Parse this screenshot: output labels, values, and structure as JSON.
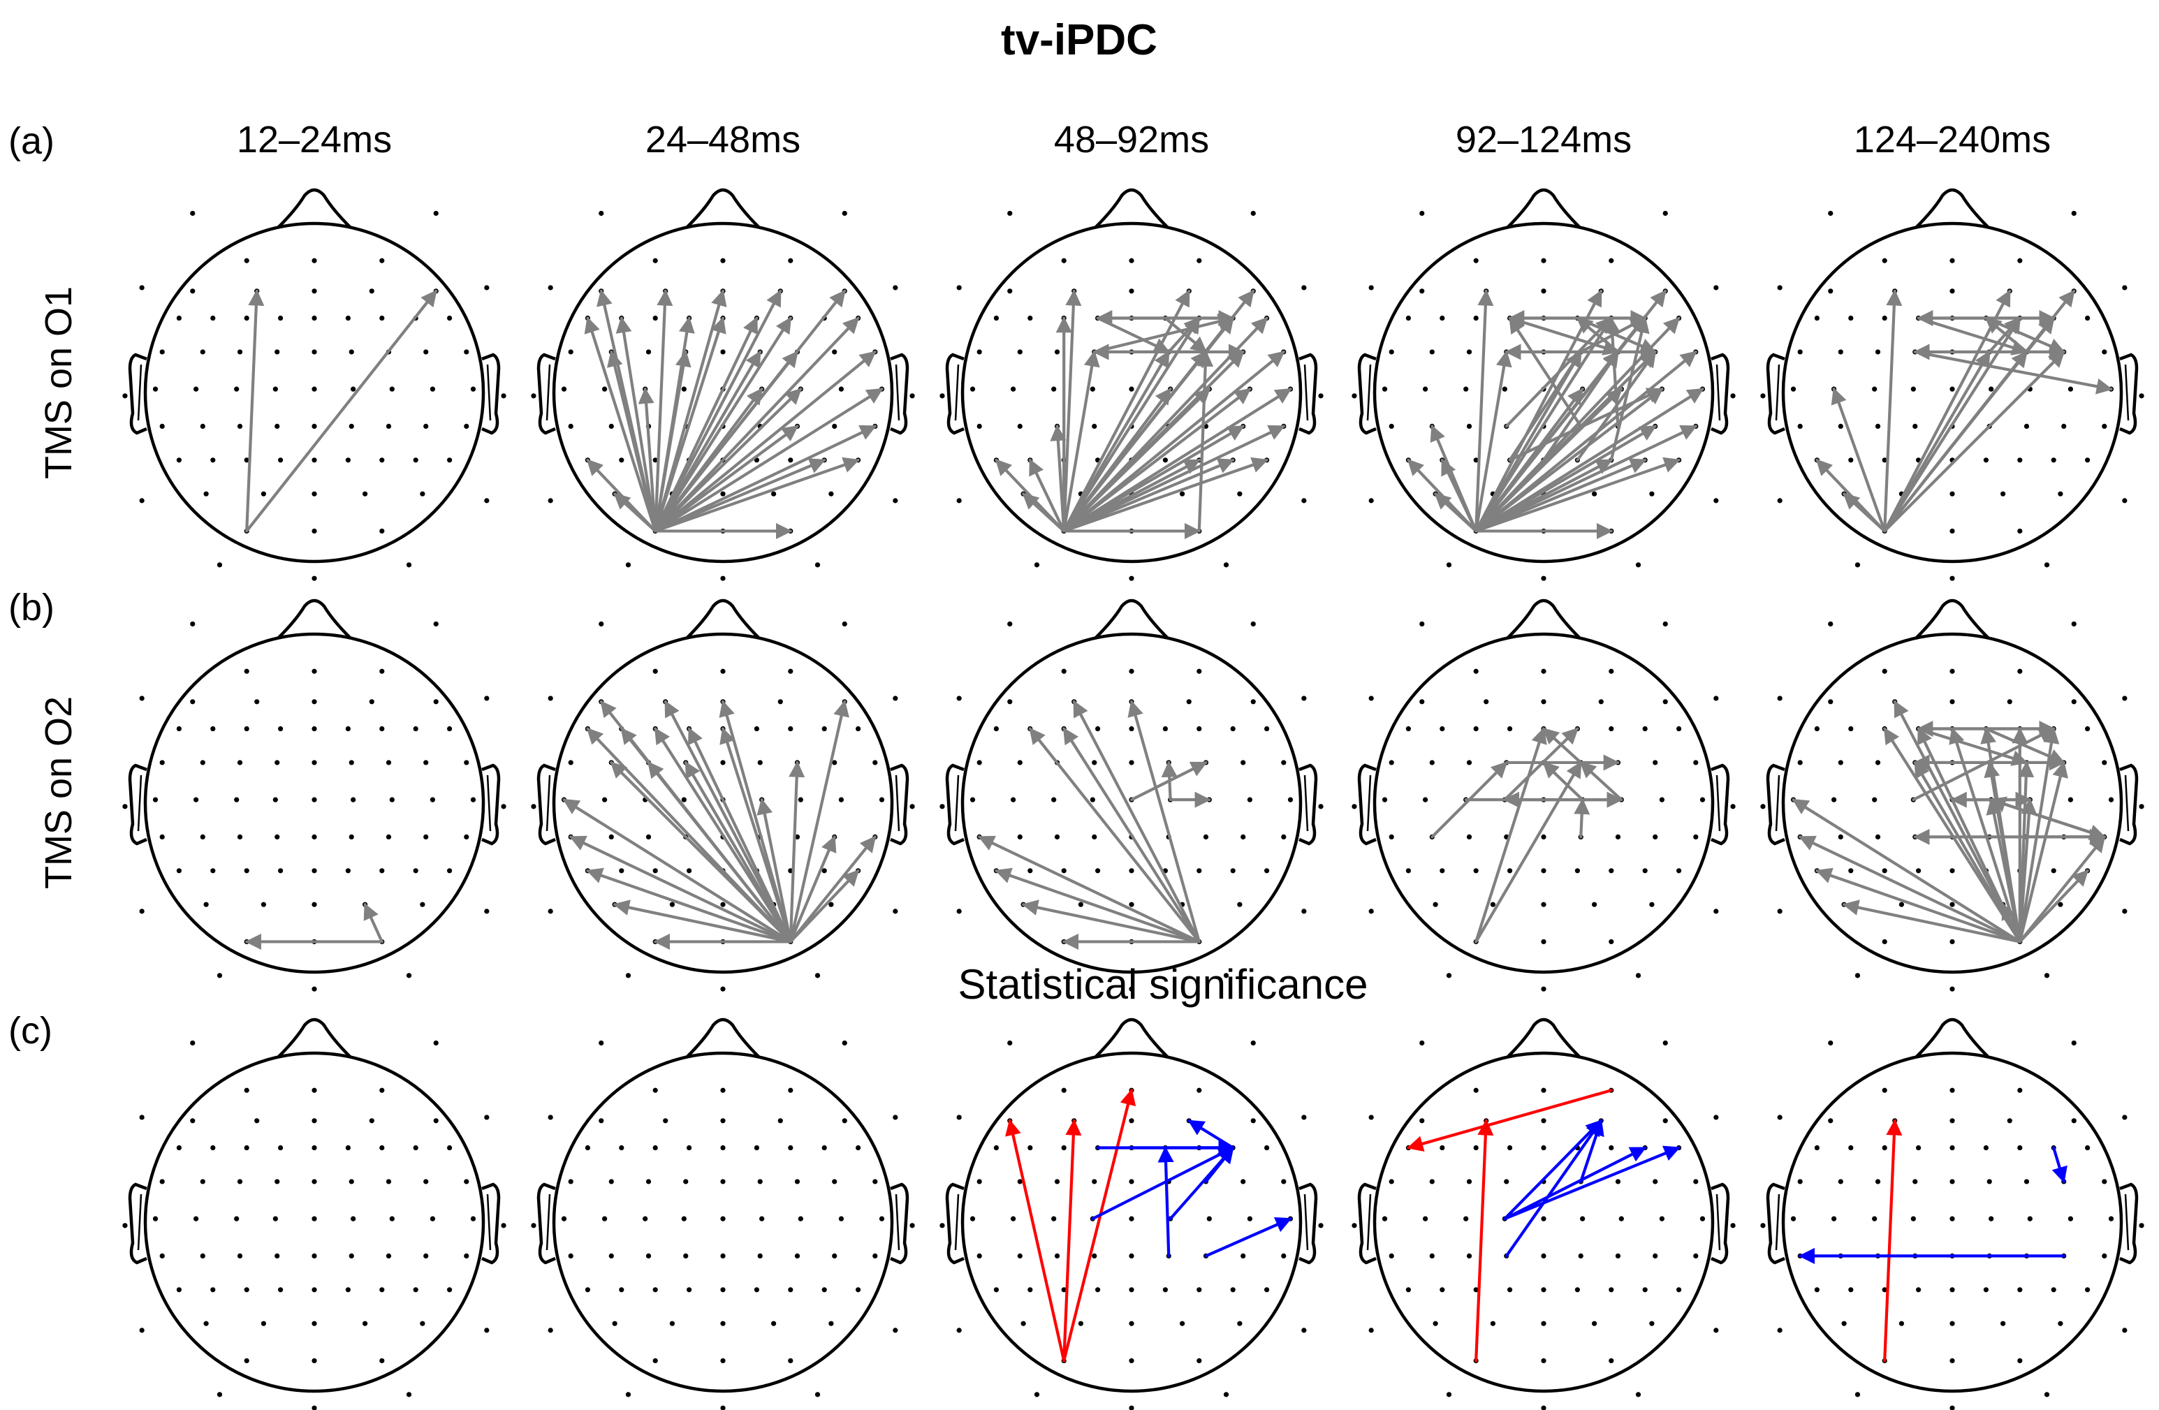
{
  "title": "tv-iPDC",
  "columns": [
    "12–24ms",
    "24–48ms",
    "48–92ms",
    "92–124ms",
    "124–240ms"
  ],
  "rows": [
    {
      "panel": "(a)",
      "label": "TMS on O1"
    },
    {
      "panel": "(b)",
      "label": "TMS on O2"
    },
    {
      "panel": "(c)",
      "label": ""
    }
  ],
  "stat_title": "Statistical significance",
  "colors": {
    "arrow": "#808080",
    "positive": "#ff0000",
    "negative": "#0000ff",
    "outline": "#000000"
  },
  "figure_data": {
    "type": "connectivity-topoplot-grid",
    "electrodes": [
      "Fp1",
      "Fpz",
      "Fp2",
      "AF7",
      "AF3",
      "AFz",
      "AF4",
      "AF8",
      "F7",
      "F5",
      "F3",
      "F1",
      "Fz",
      "F2",
      "F4",
      "F6",
      "F8",
      "FT7",
      "FC5",
      "FC3",
      "FC1",
      "FCz",
      "FC2",
      "FC4",
      "FC6",
      "FT8",
      "T7",
      "C5",
      "C3",
      "C1",
      "Cz",
      "C2",
      "C4",
      "C6",
      "T8",
      "TP7",
      "CP5",
      "CP3",
      "CP1",
      "CPz",
      "CP2",
      "CP4",
      "CP6",
      "TP8",
      "P7",
      "P5",
      "P3",
      "P1",
      "Pz",
      "P2",
      "P4",
      "P6",
      "P8",
      "PO7",
      "PO3",
      "POz",
      "PO4",
      "PO8",
      "O1",
      "Oz",
      "O2"
    ],
    "connections": [
      [
        [
          [
            "O1",
            "AF3"
          ],
          [
            "O1",
            "AF8"
          ]
        ],
        [
          [
            "O1",
            "AF7"
          ],
          [
            "O1",
            "AF3"
          ],
          [
            "O1",
            "AF4"
          ],
          [
            "O1",
            "AF8"
          ],
          [
            "O1",
            "F7"
          ],
          [
            "O1",
            "F1"
          ],
          [
            "O1",
            "F2"
          ],
          [
            "O1",
            "F4"
          ],
          [
            "O1",
            "F8"
          ],
          [
            "O1",
            "FC5"
          ],
          [
            "O1",
            "FC1"
          ],
          [
            "O1",
            "FC2"
          ],
          [
            "O1",
            "FC4"
          ],
          [
            "O1",
            "FT8"
          ],
          [
            "O1",
            "C3"
          ],
          [
            "O1",
            "C2"
          ],
          [
            "O1",
            "C4"
          ],
          [
            "O1",
            "T8"
          ],
          [
            "O1",
            "CP4"
          ],
          [
            "O1",
            "TP8"
          ],
          [
            "O1",
            "P7"
          ],
          [
            "O1",
            "P6"
          ],
          [
            "O1",
            "P8"
          ],
          [
            "O1",
            "PO7"
          ],
          [
            "O1",
            "O2"
          ],
          [
            "O1",
            "F5"
          ],
          [
            "O1",
            "AFz"
          ],
          [
            "O1",
            "Fz"
          ]
        ],
        [
          [
            "O1",
            "AF3"
          ],
          [
            "O1",
            "AF4"
          ],
          [
            "O1",
            "AF8"
          ],
          [
            "O1",
            "F3"
          ],
          [
            "O1",
            "F4"
          ],
          [
            "O1",
            "F6"
          ],
          [
            "O1",
            "F8"
          ],
          [
            "O1",
            "FC1"
          ],
          [
            "O1",
            "FC2"
          ],
          [
            "O1",
            "FC4"
          ],
          [
            "O1",
            "FC6"
          ],
          [
            "O1",
            "FT8"
          ],
          [
            "O1",
            "C2"
          ],
          [
            "O1",
            "C4"
          ],
          [
            "O1",
            "C6"
          ],
          [
            "O1",
            "T8"
          ],
          [
            "O1",
            "CP3"
          ],
          [
            "O1",
            "CP6"
          ],
          [
            "O1",
            "TP8"
          ],
          [
            "O1",
            "P7"
          ],
          [
            "O1",
            "P5"
          ],
          [
            "O1",
            "P4"
          ],
          [
            "O1",
            "P6"
          ],
          [
            "O1",
            "P8"
          ],
          [
            "O1",
            "PO7"
          ],
          [
            "O1",
            "O2"
          ],
          [
            "F1",
            "F6"
          ],
          [
            "F6",
            "F1"
          ],
          [
            "FC1",
            "FC6"
          ],
          [
            "FC6",
            "FC1"
          ],
          [
            "F2",
            "FC4"
          ],
          [
            "FC2",
            "F4"
          ],
          [
            "F1",
            "FC2"
          ],
          [
            "FC1",
            "F6"
          ],
          [
            "O2",
            "FC4"
          ],
          [
            "FC4",
            "FC1"
          ]
        ],
        [
          [
            "O1",
            "AF3"
          ],
          [
            "O1",
            "AF4"
          ],
          [
            "O1",
            "AF8"
          ],
          [
            "O1",
            "F4"
          ],
          [
            "O1",
            "F6"
          ],
          [
            "O1",
            "F8"
          ],
          [
            "O1",
            "FC1"
          ],
          [
            "O1",
            "FC2"
          ],
          [
            "O1",
            "FC4"
          ],
          [
            "O1",
            "FC6"
          ],
          [
            "O1",
            "FT8"
          ],
          [
            "O1",
            "C2"
          ],
          [
            "O1",
            "C4"
          ],
          [
            "O1",
            "C6"
          ],
          [
            "O1",
            "T8"
          ],
          [
            "O1",
            "CP5"
          ],
          [
            "O1",
            "CP6"
          ],
          [
            "O1",
            "TP8"
          ],
          [
            "O1",
            "P7"
          ],
          [
            "O1",
            "P5"
          ],
          [
            "O1",
            "P4"
          ],
          [
            "O1",
            "P6"
          ],
          [
            "O1",
            "P8"
          ],
          [
            "O1",
            "PO7"
          ],
          [
            "O1",
            "O2"
          ],
          [
            "F1",
            "F6"
          ],
          [
            "F6",
            "F1"
          ],
          [
            "FC1",
            "FC6"
          ],
          [
            "FC6",
            "FC1"
          ],
          [
            "F1",
            "FC4"
          ],
          [
            "FC2",
            "F6"
          ],
          [
            "FC4",
            "F2"
          ],
          [
            "F2",
            "FC6"
          ],
          [
            "P1",
            "FC2"
          ],
          [
            "Pz",
            "FC4"
          ],
          [
            "CP2",
            "F1"
          ],
          [
            "P2",
            "FC6"
          ],
          [
            "CP4",
            "F4"
          ],
          [
            "P4",
            "F6"
          ],
          [
            "P1",
            "C6"
          ],
          [
            "CP1",
            "F4"
          ]
        ],
        [
          [
            "O1",
            "AF3"
          ],
          [
            "O1",
            "AF4"
          ],
          [
            "O1",
            "AF8"
          ],
          [
            "O1",
            "F4"
          ],
          [
            "O1",
            "F6"
          ],
          [
            "O1",
            "FC2"
          ],
          [
            "O1",
            "FC4"
          ],
          [
            "O1",
            "FC6"
          ],
          [
            "O1",
            "C5"
          ],
          [
            "O1",
            "P7"
          ],
          [
            "O1",
            "PO7"
          ],
          [
            "F1",
            "F6"
          ],
          [
            "F6",
            "F1"
          ],
          [
            "FC1",
            "FC6"
          ],
          [
            "FC6",
            "FC1"
          ],
          [
            "F1",
            "FC4"
          ],
          [
            "F2",
            "FC6"
          ],
          [
            "FC2",
            "F4"
          ],
          [
            "FC1",
            "T8"
          ],
          [
            "FC4",
            "F2"
          ]
        ]
      ],
      [
        [
          [
            "O2",
            "PO4"
          ],
          [
            "O2",
            "O1"
          ]
        ],
        [
          [
            "O2",
            "AF7"
          ],
          [
            "O2",
            "AF3"
          ],
          [
            "O2",
            "AFz"
          ],
          [
            "O2",
            "F7"
          ],
          [
            "O2",
            "F5"
          ],
          [
            "O2",
            "F3"
          ],
          [
            "O2",
            "F1"
          ],
          [
            "O2",
            "Fz"
          ],
          [
            "O2",
            "FC5"
          ],
          [
            "O2",
            "FC3"
          ],
          [
            "O2",
            "FC1"
          ],
          [
            "O2",
            "FC4"
          ],
          [
            "O2",
            "C2"
          ],
          [
            "O2",
            "T7"
          ],
          [
            "O2",
            "CP6"
          ],
          [
            "O2",
            "TP8"
          ],
          [
            "O2",
            "P8"
          ],
          [
            "O2",
            "TP7"
          ],
          [
            "O2",
            "P7"
          ],
          [
            "O2",
            "PO7"
          ],
          [
            "O2",
            "O1"
          ],
          [
            "O2",
            "AF8"
          ]
        ],
        [
          [
            "O2",
            "AF3"
          ],
          [
            "O2",
            "AFz"
          ],
          [
            "O2",
            "F5"
          ],
          [
            "O2",
            "F3"
          ],
          [
            "O2",
            "TP7"
          ],
          [
            "O2",
            "P7"
          ],
          [
            "O2",
            "PO7"
          ],
          [
            "O2",
            "O1"
          ],
          [
            "Cz",
            "FC4"
          ],
          [
            "C2",
            "C4"
          ],
          [
            "C2",
            "FC2"
          ]
        ],
        [
          [
            "O1",
            "Fz"
          ],
          [
            "O1",
            "FC2"
          ],
          [
            "FC1",
            "FC4"
          ],
          [
            "FC2",
            "Fz"
          ],
          [
            "C1",
            "F2"
          ],
          [
            "C2",
            "FCz"
          ],
          [
            "C4",
            "FC2"
          ],
          [
            "C3",
            "C4"
          ],
          [
            "C4",
            "C1"
          ],
          [
            "CP2",
            "C2"
          ],
          [
            "CP5",
            "FC1"
          ]
        ],
        [
          [
            "O2",
            "AF3"
          ],
          [
            "O2",
            "F3"
          ],
          [
            "O2",
            "F1"
          ],
          [
            "O2",
            "Fz"
          ],
          [
            "O2",
            "F2"
          ],
          [
            "O2",
            "F4"
          ],
          [
            "O2",
            "F6"
          ],
          [
            "O2",
            "FC1"
          ],
          [
            "O2",
            "FC2"
          ],
          [
            "O2",
            "FC4"
          ],
          [
            "O2",
            "FC6"
          ],
          [
            "O2",
            "C2"
          ],
          [
            "O2",
            "C4"
          ],
          [
            "O2",
            "T7"
          ],
          [
            "O2",
            "TP7"
          ],
          [
            "O2",
            "P7"
          ],
          [
            "O2",
            "P8"
          ],
          [
            "O2",
            "TP8"
          ],
          [
            "O2",
            "PO7"
          ],
          [
            "O2",
            "PO4"
          ],
          [
            "F1",
            "F6"
          ],
          [
            "F6",
            "F1"
          ],
          [
            "FC1",
            "FC6"
          ],
          [
            "FC6",
            "FC1"
          ],
          [
            "Cz",
            "C4"
          ],
          [
            "C4",
            "Cz"
          ],
          [
            "F1",
            "FC4"
          ],
          [
            "F2",
            "FC6"
          ],
          [
            "C2",
            "TP8"
          ],
          [
            "CP4",
            "TP8"
          ],
          [
            "CP6",
            "TP8"
          ],
          [
            "TP8",
            "CP1"
          ],
          [
            "TP8",
            "C2"
          ],
          [
            "C1",
            "F6"
          ]
        ]
      ],
      [
        [],
        [],
        {
          "positive": [
            [
              "O1",
              "AF7"
            ],
            [
              "O1",
              "AF3"
            ],
            [
              "O1",
              "Fpz"
            ]
          ],
          "negative": [
            [
              "CP2",
              "F2"
            ],
            [
              "F1",
              "F6"
            ],
            [
              "C2",
              "F6"
            ],
            [
              "FC4",
              "F6"
            ],
            [
              "F4",
              "F6"
            ],
            [
              "Fz",
              "F6"
            ],
            [
              "F6",
              "AF4"
            ],
            [
              "CP4",
              "T8"
            ],
            [
              "C1",
              "F6"
            ]
          ]
        },
        {
          "positive": [
            [
              "O1",
              "AF3"
            ],
            [
              "Fp2",
              "F7"
            ]
          ],
          "negative": [
            [
              "CP1",
              "AF4"
            ],
            [
              "FC2",
              "AF4"
            ],
            [
              "C1",
              "AF4"
            ],
            [
              "C1",
              "F6"
            ],
            [
              "C1",
              "F8"
            ]
          ]
        },
        {
          "positive": [
            [
              "O1",
              "AF3"
            ]
          ],
          "negative": [
            [
              "CP6",
              "TP7"
            ],
            [
              "F6",
              "FC6"
            ]
          ]
        }
      ]
    ]
  }
}
